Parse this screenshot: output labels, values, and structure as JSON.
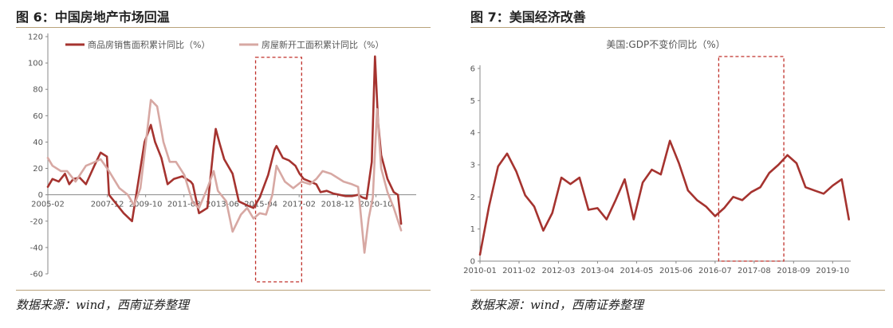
{
  "panels": [
    {
      "title": "图 6：中国房地产市场回温",
      "source": "数据来源：wind，西南证券整理"
    },
    {
      "title": "图 7：美国经济改善",
      "source": "数据来源：wind，西南证券整理"
    }
  ],
  "colors": {
    "dark": "#a5332f",
    "light": "#d7a8a3",
    "highlight": "#c0302a",
    "axis": "#888888"
  },
  "chart_data": [
    {
      "type": "line",
      "title": "",
      "ylim": [
        -60,
        120
      ],
      "yticks": [
        -60,
        -40,
        -20,
        0,
        20,
        40,
        60,
        80,
        100,
        120
      ],
      "xlim": [
        2005.08,
        2022.67
      ],
      "xtick_labels": [
        {
          "label": "2005-02",
          "pos": 2005.08
        },
        {
          "label": "2007-12",
          "pos": 2007.92
        },
        {
          "label": "2009-10",
          "pos": 2009.75
        },
        {
          "label": "2011-08",
          "pos": 2011.58
        },
        {
          "label": "2013-06",
          "pos": 2013.42
        },
        {
          "label": "2015-04",
          "pos": 2015.25
        },
        {
          "label": "2017-02",
          "pos": 2017.08
        },
        {
          "label": "2018-12",
          "pos": 2018.92
        },
        {
          "label": "2020-10",
          "pos": 2020.75
        }
      ],
      "highlight_x": [
        2015.0,
        2017.2
      ],
      "series": [
        {
          "name": "商品房销售面积累计同比（%）",
          "color": "dark",
          "points": [
            [
              2005.08,
              6
            ],
            [
              2005.3,
              12
            ],
            [
              2005.6,
              10
            ],
            [
              2005.9,
              16
            ],
            [
              2006.1,
              8
            ],
            [
              2006.3,
              12
            ],
            [
              2006.6,
              13
            ],
            [
              2006.9,
              8
            ],
            [
              2007.3,
              22
            ],
            [
              2007.6,
              32
            ],
            [
              2007.9,
              29
            ],
            [
              2008.0,
              0
            ],
            [
              2008.3,
              -6
            ],
            [
              2008.7,
              -14
            ],
            [
              2009.1,
              -20
            ],
            [
              2009.4,
              10
            ],
            [
              2009.7,
              40
            ],
            [
              2010.0,
              53
            ],
            [
              2010.2,
              40
            ],
            [
              2010.5,
              28
            ],
            [
              2010.8,
              8
            ],
            [
              2011.1,
              12
            ],
            [
              2011.5,
              14
            ],
            [
              2011.9,
              10
            ],
            [
              2012.0,
              8
            ],
            [
              2012.3,
              -14
            ],
            [
              2012.7,
              -10
            ],
            [
              2013.0,
              37
            ],
            [
              2013.1,
              50
            ],
            [
              2013.3,
              38
            ],
            [
              2013.5,
              27
            ],
            [
              2013.9,
              16
            ],
            [
              2014.2,
              -5
            ],
            [
              2014.6,
              -8
            ],
            [
              2014.9,
              -10
            ],
            [
              2015.2,
              -2
            ],
            [
              2015.6,
              15
            ],
            [
              2015.9,
              34
            ],
            [
              2016.0,
              37
            ],
            [
              2016.3,
              28
            ],
            [
              2016.6,
              26
            ],
            [
              2016.9,
              22
            ],
            [
              2017.1,
              16
            ],
            [
              2017.3,
              12
            ],
            [
              2017.6,
              10
            ],
            [
              2017.9,
              8
            ],
            [
              2018.1,
              2
            ],
            [
              2018.4,
              3
            ],
            [
              2018.7,
              1
            ],
            [
              2019.0,
              0
            ],
            [
              2019.3,
              -1
            ],
            [
              2019.6,
              -1
            ],
            [
              2019.9,
              0
            ],
            [
              2020.1,
              -2
            ],
            [
              2020.3,
              -3
            ],
            [
              2020.55,
              25
            ],
            [
              2020.7,
              105
            ],
            [
              2020.85,
              55
            ],
            [
              2021.0,
              30
            ],
            [
              2021.3,
              12
            ],
            [
              2021.6,
              2
            ],
            [
              2021.8,
              0
            ],
            [
              2021.95,
              -22
            ]
          ]
        },
        {
          "name": "房屋新开工面积累计同比（%）",
          "color": "light",
          "points": [
            [
              2005.08,
              28
            ],
            [
              2005.3,
              22
            ],
            [
              2005.7,
              18
            ],
            [
              2006.0,
              18
            ],
            [
              2006.4,
              10
            ],
            [
              2006.9,
              22
            ],
            [
              2007.2,
              24
            ],
            [
              2007.6,
              27
            ],
            [
              2008.0,
              18
            ],
            [
              2008.5,
              5
            ],
            [
              2008.9,
              0
            ],
            [
              2009.2,
              -8
            ],
            [
              2009.5,
              5
            ],
            [
              2009.8,
              45
            ],
            [
              2010.0,
              72
            ],
            [
              2010.3,
              67
            ],
            [
              2010.6,
              40
            ],
            [
              2010.9,
              25
            ],
            [
              2011.2,
              25
            ],
            [
              2011.6,
              15
            ],
            [
              2012.0,
              -6
            ],
            [
              2012.3,
              -10
            ],
            [
              2012.7,
              5
            ],
            [
              2013.0,
              18
            ],
            [
              2013.2,
              3
            ],
            [
              2013.6,
              -5
            ],
            [
              2013.9,
              -28
            ],
            [
              2014.3,
              -15
            ],
            [
              2014.6,
              -10
            ],
            [
              2014.9,
              -18
            ],
            [
              2015.2,
              -14
            ],
            [
              2015.5,
              -15
            ],
            [
              2015.8,
              0
            ],
            [
              2016.0,
              22
            ],
            [
              2016.4,
              10
            ],
            [
              2016.8,
              5
            ],
            [
              2017.2,
              10
            ],
            [
              2017.6,
              8
            ],
            [
              2017.9,
              12
            ],
            [
              2018.2,
              18
            ],
            [
              2018.6,
              16
            ],
            [
              2018.9,
              13
            ],
            [
              2019.2,
              10
            ],
            [
              2019.6,
              8
            ],
            [
              2019.9,
              6
            ],
            [
              2020.2,
              -44
            ],
            [
              2020.4,
              -18
            ],
            [
              2020.6,
              -2
            ],
            [
              2020.8,
              65
            ],
            [
              2021.0,
              20
            ],
            [
              2021.3,
              2
            ],
            [
              2021.6,
              -10
            ],
            [
              2021.95,
              -27
            ]
          ]
        }
      ]
    },
    {
      "type": "line",
      "title": "美国:GDP不变价同比（%）",
      "ylim": [
        0,
        6
      ],
      "yticks": [
        0,
        1,
        2,
        3,
        4,
        5,
        6
      ],
      "xlim": [
        2010.0,
        2020.25
      ],
      "xtick_labels": [
        {
          "label": "2010-01",
          "pos": 2010.0
        },
        {
          "label": "2011-02",
          "pos": 2011.08
        },
        {
          "label": "2012-03",
          "pos": 2012.17
        },
        {
          "label": "2013-04",
          "pos": 2013.25
        },
        {
          "label": "2014-05",
          "pos": 2014.33
        },
        {
          "label": "2015-06",
          "pos": 2015.42
        },
        {
          "label": "2016-07",
          "pos": 2016.5
        },
        {
          "label": "2017-08",
          "pos": 2017.58
        },
        {
          "label": "2018-09",
          "pos": 2018.67
        },
        {
          "label": "2019-10",
          "pos": 2019.75
        }
      ],
      "highlight_x": [
        2016.6,
        2018.4
      ],
      "series": [
        {
          "name": "",
          "color": "dark",
          "points": [
            [
              2010.0,
              0.2
            ],
            [
              2010.25,
              1.7
            ],
            [
              2010.5,
              2.95
            ],
            [
              2010.75,
              3.35
            ],
            [
              2011.0,
              2.8
            ],
            [
              2011.25,
              2.05
            ],
            [
              2011.5,
              1.7
            ],
            [
              2011.75,
              0.95
            ],
            [
              2012.0,
              1.5
            ],
            [
              2012.25,
              2.6
            ],
            [
              2012.5,
              2.4
            ],
            [
              2012.75,
              2.6
            ],
            [
              2013.0,
              1.6
            ],
            [
              2013.25,
              1.65
            ],
            [
              2013.5,
              1.3
            ],
            [
              2013.75,
              1.9
            ],
            [
              2014.0,
              2.55
            ],
            [
              2014.25,
              1.3
            ],
            [
              2014.5,
              2.45
            ],
            [
              2014.75,
              2.85
            ],
            [
              2015.0,
              2.7
            ],
            [
              2015.25,
              3.75
            ],
            [
              2015.5,
              3.05
            ],
            [
              2015.75,
              2.2
            ],
            [
              2016.0,
              1.9
            ],
            [
              2016.25,
              1.7
            ],
            [
              2016.5,
              1.4
            ],
            [
              2016.75,
              1.65
            ],
            [
              2017.0,
              2.0
            ],
            [
              2017.25,
              1.9
            ],
            [
              2017.5,
              2.15
            ],
            [
              2017.75,
              2.3
            ],
            [
              2018.0,
              2.75
            ],
            [
              2018.25,
              3.0
            ],
            [
              2018.5,
              3.3
            ],
            [
              2018.75,
              3.05
            ],
            [
              2019.0,
              2.3
            ],
            [
              2019.25,
              2.2
            ],
            [
              2019.5,
              2.1
            ],
            [
              2019.75,
              2.35
            ],
            [
              2020.0,
              2.55
            ],
            [
              2020.2,
              1.3
            ]
          ]
        }
      ]
    }
  ]
}
